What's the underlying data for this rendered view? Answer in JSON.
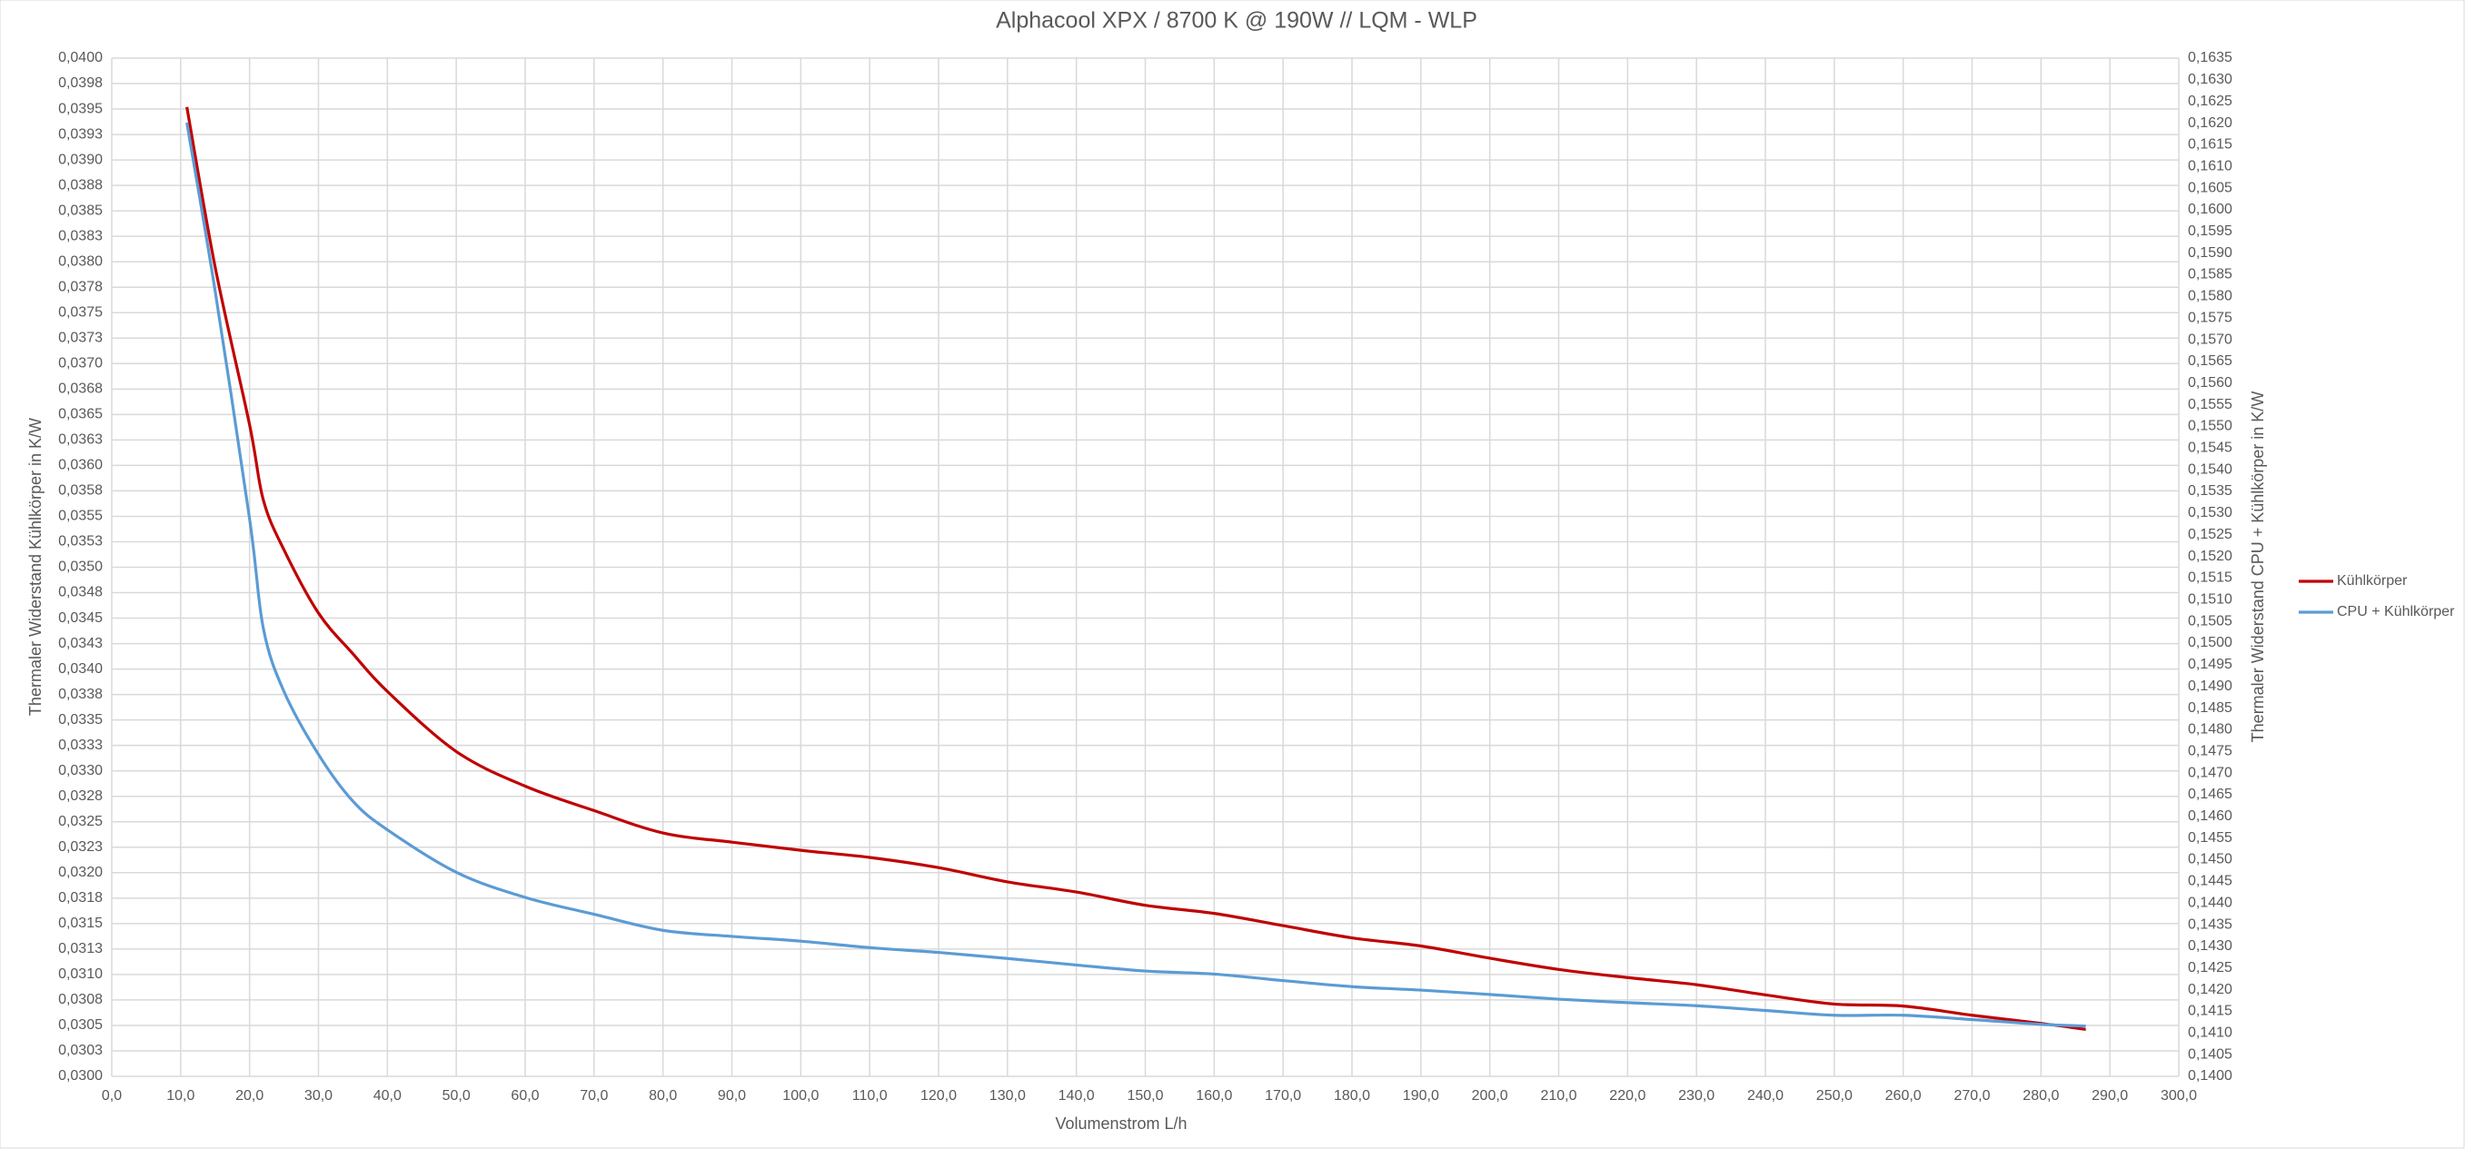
{
  "chart_data": {
    "type": "line",
    "title": "Alphacool XPX / 8700 K @ 190W // LQM - WLP",
    "x_label": "Volumenstrom L/h",
    "y_label": "Thermaler Widerstand Kühlkörper in K/W",
    "y2_label": "Thermaler Widerstand CPU + Kühlkörper in K/W",
    "grid": true,
    "legend": "right",
    "x": [
      10.9,
      15,
      20,
      22,
      25,
      30,
      35,
      40,
      50,
      60,
      70,
      80,
      90,
      100,
      110,
      120,
      130,
      140,
      150,
      160,
      170,
      180,
      190,
      200,
      210,
      220,
      230,
      240,
      250,
      260,
      270,
      280,
      286.5
    ],
    "series": [
      {
        "name": "Kühlkörper",
        "color": "#c00000",
        "values": [
          0.03952,
          0.03795,
          0.0364,
          0.03566,
          0.03517,
          0.03455,
          0.03415,
          0.03378,
          0.03319,
          0.03285,
          0.03261,
          0.03239,
          0.0323,
          0.03222,
          0.03215,
          0.03205,
          0.03191,
          0.03181,
          0.03168,
          0.0316,
          0.03148,
          0.03136,
          0.03128,
          0.03116,
          0.03105,
          0.03097,
          0.0309,
          0.0308,
          0.03071,
          0.03069,
          0.0306,
          0.03052,
          0.03046
        ]
      },
      {
        "name": "CPU + Kühlkörper",
        "color": "#5b9bd5",
        "axis": "y2",
        "values": [
          0.16201,
          0.15813,
          0.15287,
          0.15034,
          0.14888,
          0.14743,
          0.14635,
          0.14569,
          0.14471,
          0.14413,
          0.14374,
          0.14337,
          0.14323,
          0.14312,
          0.14297,
          0.14286,
          0.14272,
          0.14257,
          0.14243,
          0.14236,
          0.14221,
          0.14207,
          0.14199,
          0.14189,
          0.14178,
          0.1417,
          0.14163,
          0.14152,
          0.14141,
          0.14141,
          0.14131,
          0.1412,
          0.14116
        ]
      }
    ],
    "xlim": [
      0,
      300
    ],
    "xticks": [
      {
        "value": 0,
        "label": "0,0"
      },
      {
        "value": 10,
        "label": "10,0"
      },
      {
        "value": 20,
        "label": "20,0"
      },
      {
        "value": 30,
        "label": "30,0"
      },
      {
        "value": 40,
        "label": "40,0"
      },
      {
        "value": 50,
        "label": "50,0"
      },
      {
        "value": 60,
        "label": "60,0"
      },
      {
        "value": 70,
        "label": "70,0"
      },
      {
        "value": 80,
        "label": "80,0"
      },
      {
        "value": 90,
        "label": "90,0"
      },
      {
        "value": 100,
        "label": "100,0"
      },
      {
        "value": 110,
        "label": "110,0"
      },
      {
        "value": 120,
        "label": "120,0"
      },
      {
        "value": 130,
        "label": "130,0"
      },
      {
        "value": 140,
        "label": "140,0"
      },
      {
        "value": 150,
        "label": "150,0"
      },
      {
        "value": 160,
        "label": "160,0"
      },
      {
        "value": 170,
        "label": "170,0"
      },
      {
        "value": 180,
        "label": "180,0"
      },
      {
        "value": 190,
        "label": "190,0"
      },
      {
        "value": 200,
        "label": "200,0"
      },
      {
        "value": 210,
        "label": "210,0"
      },
      {
        "value": 220,
        "label": "220,0"
      },
      {
        "value": 230,
        "label": "230,0"
      },
      {
        "value": 240,
        "label": "240,0"
      },
      {
        "value": 250,
        "label": "250,0"
      },
      {
        "value": 260,
        "label": "260,0"
      },
      {
        "value": 270,
        "label": "270,0"
      },
      {
        "value": 280,
        "label": "280,0"
      },
      {
        "value": 290,
        "label": "290,0"
      },
      {
        "value": 300,
        "label": "300,0"
      }
    ],
    "ylim": [
      0.03,
      0.04
    ],
    "yticks": [
      {
        "value": 0.03,
        "label": "0,0300"
      },
      {
        "value": 0.03025,
        "label": "0,0303"
      },
      {
        "value": 0.0305,
        "label": "0,0305"
      },
      {
        "value": 0.03075,
        "label": "0,0308"
      },
      {
        "value": 0.031,
        "label": "0,0310"
      },
      {
        "value": 0.03125,
        "label": "0,0313"
      },
      {
        "value": 0.0315,
        "label": "0,0315"
      },
      {
        "value": 0.03175,
        "label": "0,0318"
      },
      {
        "value": 0.032,
        "label": "0,0320"
      },
      {
        "value": 0.03225,
        "label": "0,0323"
      },
      {
        "value": 0.0325,
        "label": "0,0325"
      },
      {
        "value": 0.03275,
        "label": "0,0328"
      },
      {
        "value": 0.033,
        "label": "0,0330"
      },
      {
        "value": 0.03325,
        "label": "0,0333"
      },
      {
        "value": 0.0335,
        "label": "0,0335"
      },
      {
        "value": 0.03375,
        "label": "0,0338"
      },
      {
        "value": 0.034,
        "label": "0,0340"
      },
      {
        "value": 0.03425,
        "label": "0,0343"
      },
      {
        "value": 0.0345,
        "label": "0,0345"
      },
      {
        "value": 0.03475,
        "label": "0,0348"
      },
      {
        "value": 0.035,
        "label": "0,0350"
      },
      {
        "value": 0.03525,
        "label": "0,0353"
      },
      {
        "value": 0.0355,
        "label": "0,0355"
      },
      {
        "value": 0.03575,
        "label": "0,0358"
      },
      {
        "value": 0.036,
        "label": "0,0360"
      },
      {
        "value": 0.03625,
        "label": "0,0363"
      },
      {
        "value": 0.0365,
        "label": "0,0365"
      },
      {
        "value": 0.03675,
        "label": "0,0368"
      },
      {
        "value": 0.037,
        "label": "0,0370"
      },
      {
        "value": 0.03725,
        "label": "0,0373"
      },
      {
        "value": 0.0375,
        "label": "0,0375"
      },
      {
        "value": 0.03775,
        "label": "0,0378"
      },
      {
        "value": 0.038,
        "label": "0,0380"
      },
      {
        "value": 0.03825,
        "label": "0,0383"
      },
      {
        "value": 0.0385,
        "label": "0,0385"
      },
      {
        "value": 0.03875,
        "label": "0,0388"
      },
      {
        "value": 0.039,
        "label": "0,0390"
      },
      {
        "value": 0.03925,
        "label": "0,0393"
      },
      {
        "value": 0.0395,
        "label": "0,0395"
      },
      {
        "value": 0.03975,
        "label": "0,0398"
      },
      {
        "value": 0.04,
        "label": "0,0400"
      }
    ],
    "y2lim": [
      0.14,
      0.1635
    ],
    "y2ticks": [
      {
        "value": 0.14,
        "label": "0,1400"
      },
      {
        "value": 0.1405,
        "label": "0,1405"
      },
      {
        "value": 0.141,
        "label": "0,1410"
      },
      {
        "value": 0.1415,
        "label": "0,1415"
      },
      {
        "value": 0.142,
        "label": "0,1420"
      },
      {
        "value": 0.1425,
        "label": "0,1425"
      },
      {
        "value": 0.143,
        "label": "0,1430"
      },
      {
        "value": 0.1435,
        "label": "0,1435"
      },
      {
        "value": 0.144,
        "label": "0,1440"
      },
      {
        "value": 0.1445,
        "label": "0,1445"
      },
      {
        "value": 0.145,
        "label": "0,1450"
      },
      {
        "value": 0.1455,
        "label": "0,1455"
      },
      {
        "value": 0.146,
        "label": "0,1460"
      },
      {
        "value": 0.1465,
        "label": "0,1465"
      },
      {
        "value": 0.147,
        "label": "0,1470"
      },
      {
        "value": 0.1475,
        "label": "0,1475"
      },
      {
        "value": 0.148,
        "label": "0,1480"
      },
      {
        "value": 0.1485,
        "label": "0,1485"
      },
      {
        "value": 0.149,
        "label": "0,1490"
      },
      {
        "value": 0.1495,
        "label": "0,1495"
      },
      {
        "value": 0.15,
        "label": "0,1500"
      },
      {
        "value": 0.1505,
        "label": "0,1505"
      },
      {
        "value": 0.151,
        "label": "0,1510"
      },
      {
        "value": 0.1515,
        "label": "0,1515"
      },
      {
        "value": 0.152,
        "label": "0,1520"
      },
      {
        "value": 0.1525,
        "label": "0,1525"
      },
      {
        "value": 0.153,
        "label": "0,1530"
      },
      {
        "value": 0.1535,
        "label": "0,1535"
      },
      {
        "value": 0.154,
        "label": "0,1540"
      },
      {
        "value": 0.1545,
        "label": "0,1545"
      },
      {
        "value": 0.155,
        "label": "0,1550"
      },
      {
        "value": 0.1555,
        "label": "0,1555"
      },
      {
        "value": 0.156,
        "label": "0,1560"
      },
      {
        "value": 0.1565,
        "label": "0,1565"
      },
      {
        "value": 0.157,
        "label": "0,1570"
      },
      {
        "value": 0.1575,
        "label": "0,1575"
      },
      {
        "value": 0.158,
        "label": "0,1580"
      },
      {
        "value": 0.1585,
        "label": "0,1585"
      },
      {
        "value": 0.159,
        "label": "0,1590"
      },
      {
        "value": 0.1595,
        "label": "0,1595"
      },
      {
        "value": 0.16,
        "label": "0,1600"
      },
      {
        "value": 0.1605,
        "label": "0,1605"
      },
      {
        "value": 0.161,
        "label": "0,1610"
      },
      {
        "value": 0.1615,
        "label": "0,1615"
      },
      {
        "value": 0.162,
        "label": "0,1620"
      },
      {
        "value": 0.1625,
        "label": "0,1625"
      },
      {
        "value": 0.163,
        "label": "0,1630"
      },
      {
        "value": 0.1635,
        "label": "0,1635"
      }
    ]
  }
}
